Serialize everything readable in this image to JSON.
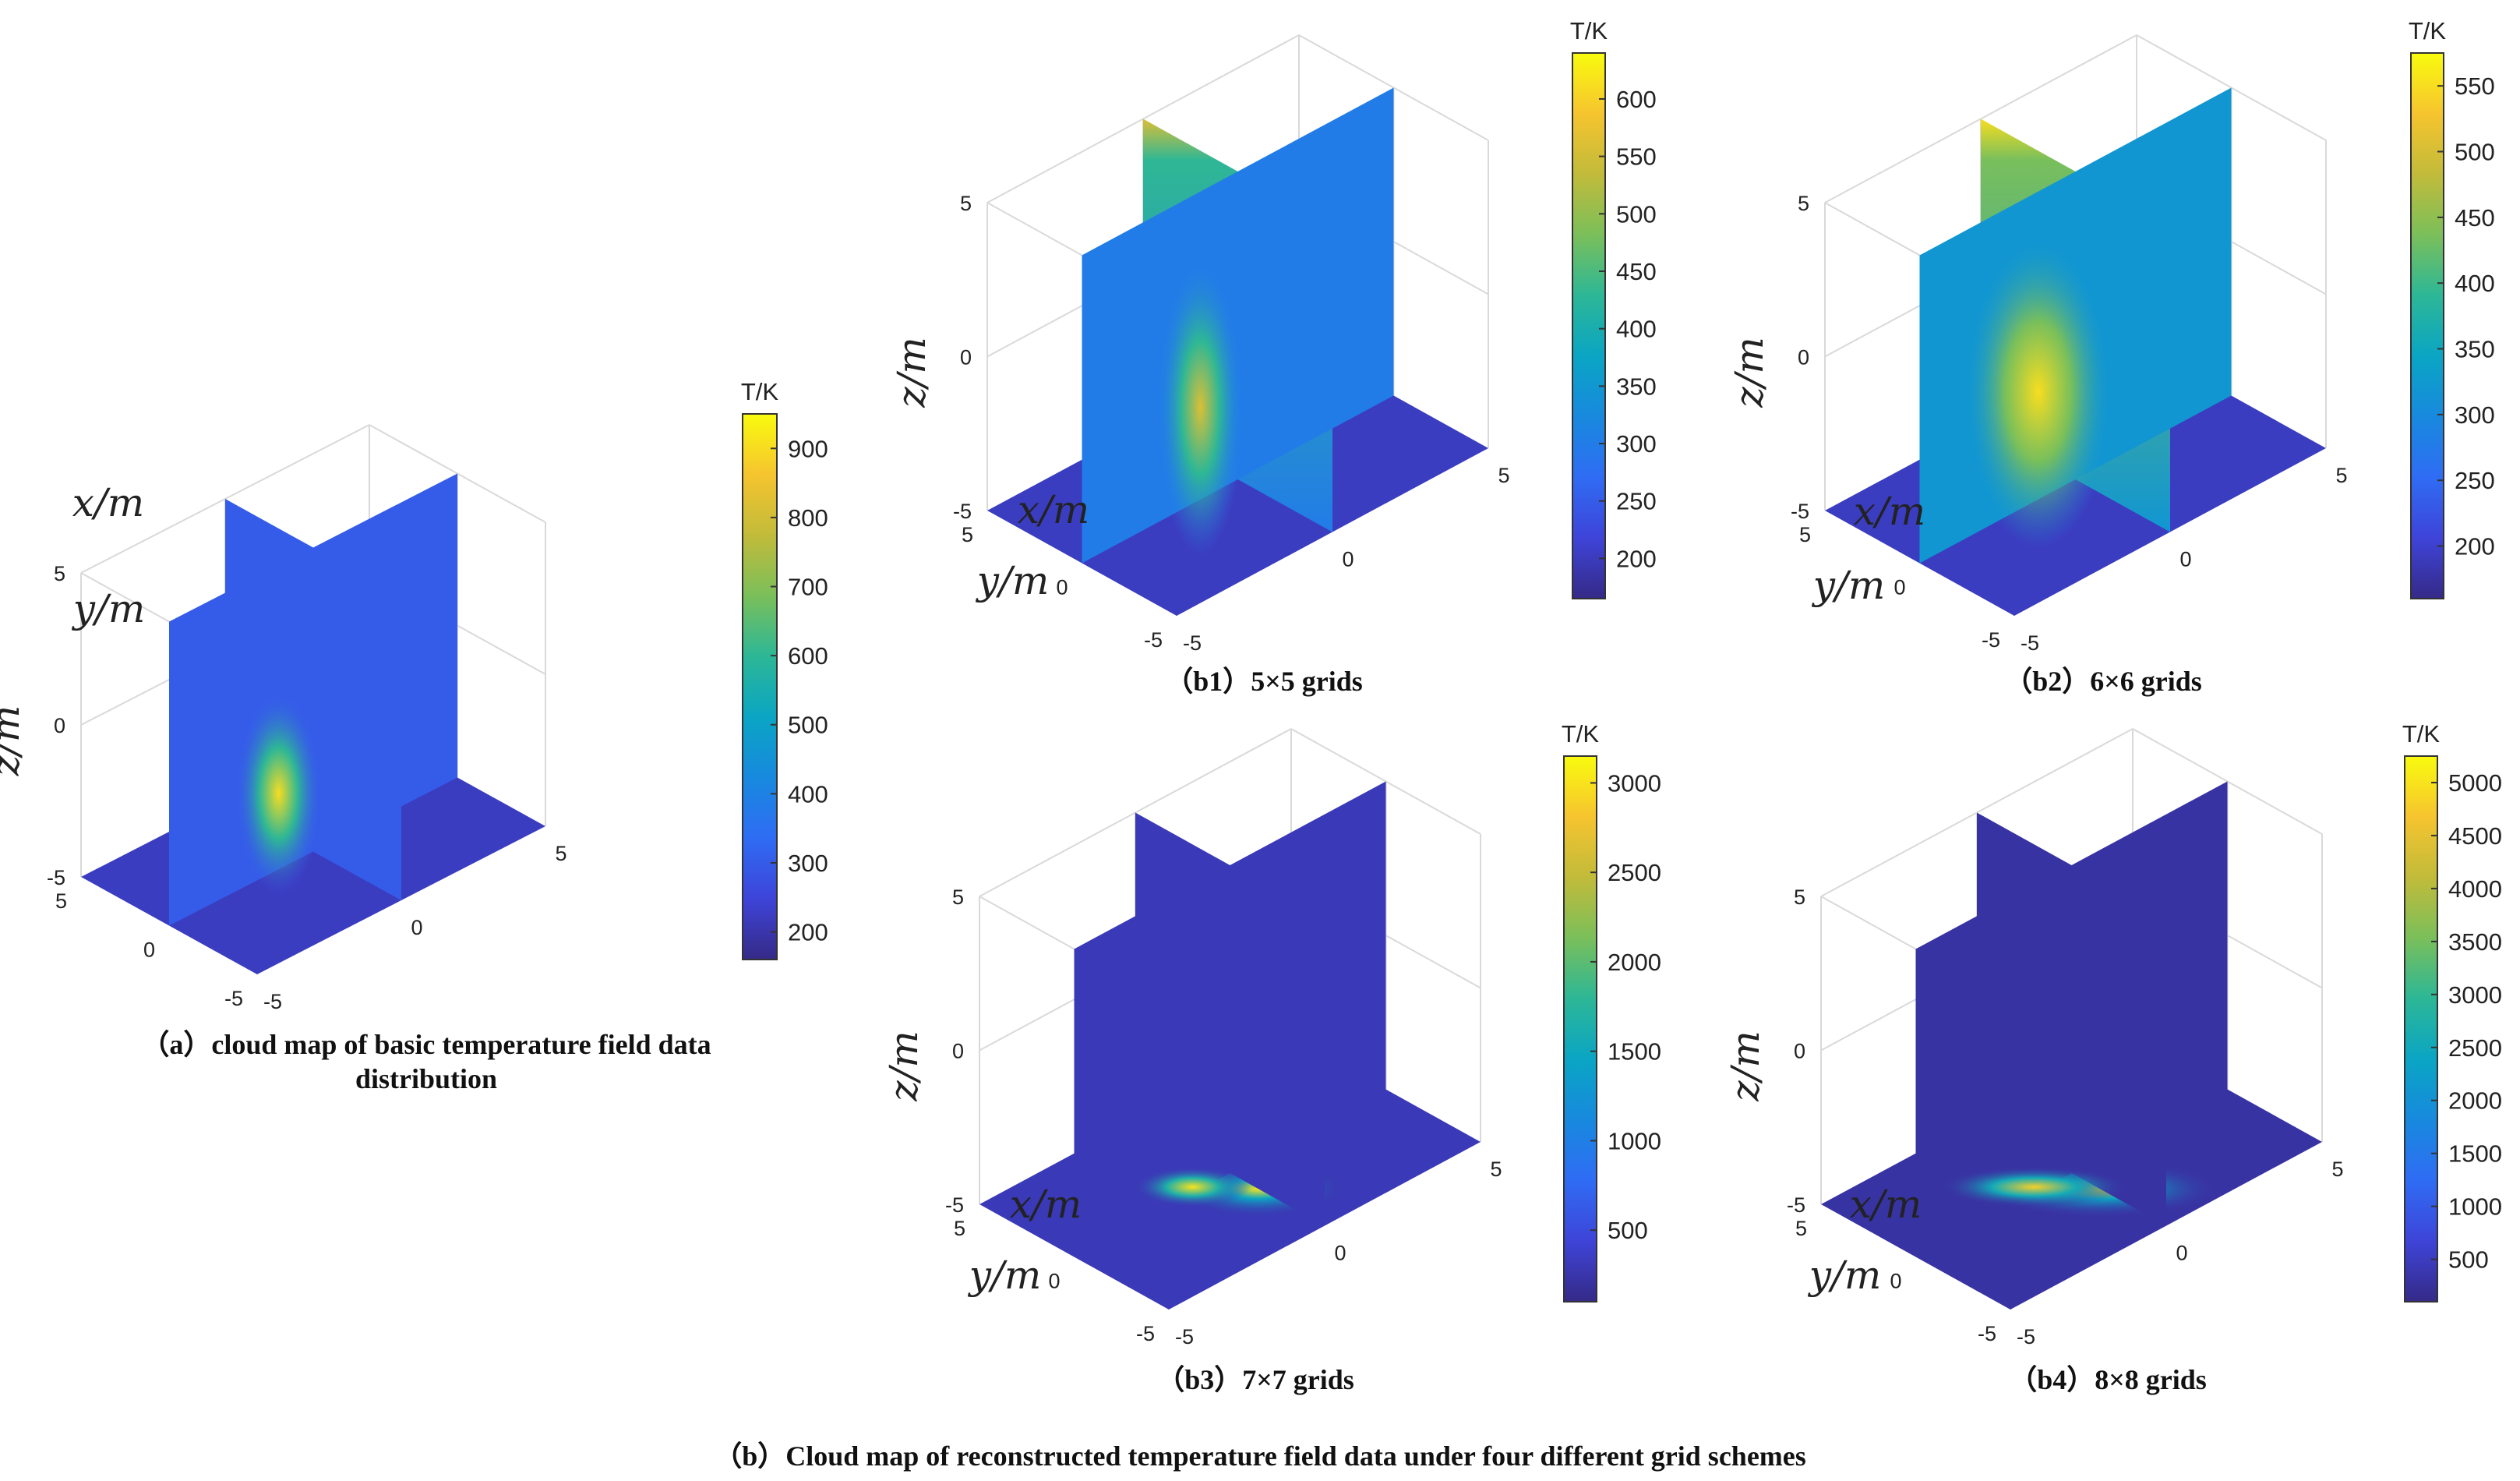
{
  "figure_caption": "（b）Cloud map of reconstructed temperature field data under four different grid schemes",
  "colors": {
    "parula": [
      "#352a87",
      "#3e44d8",
      "#2f6cf4",
      "#1889de",
      "#0aa5c4",
      "#2db796",
      "#7bbf5a",
      "#c2bb3a",
      "#f6c42f",
      "#f9fb0e"
    ]
  },
  "chart_data": [
    {
      "id": "a",
      "type": "heatmap",
      "title": "（a）cloud map of basic temperature field data distribution",
      "title_lines": [
        "（a）cloud map of basic temperature field data",
        "distribution"
      ],
      "xlabel": "x/m",
      "ylabel": "y/m",
      "zlabel": "z/m",
      "xlim": [
        -5,
        5
      ],
      "ylim": [
        -5,
        5
      ],
      "zlim": [
        -5,
        5
      ],
      "x_ticks": [
        "-5",
        "0",
        "5"
      ],
      "y_ticks": [
        "-5",
        "0",
        "5"
      ],
      "z_ticks": [
        "-5",
        "0",
        "5"
      ],
      "colorbar": {
        "unit": "T/K",
        "range": [
          160,
          950
        ],
        "ticks": [
          200,
          300,
          400,
          500,
          600,
          700,
          800,
          900
        ]
      },
      "hotspot": {
        "z": -2.5,
        "peak": 900,
        "ambient": 300
      }
    },
    {
      "id": "b1",
      "type": "heatmap",
      "title": "（b1）5×5 grids",
      "xlabel": "x/m",
      "ylabel": "y/m",
      "zlabel": "z/m",
      "xlim": [
        -5,
        5
      ],
      "ylim": [
        -5,
        5
      ],
      "zlim": [
        -5,
        5
      ],
      "x_ticks": [
        "-5",
        "0",
        "5"
      ],
      "y_ticks": [
        "-5",
        "0",
        "5"
      ],
      "z_ticks": [
        "-5",
        "0",
        "5"
      ],
      "colorbar": {
        "unit": "T/K",
        "range": [
          165,
          640
        ],
        "ticks": [
          200,
          250,
          300,
          350,
          400,
          450,
          500,
          550,
          600
        ]
      },
      "hotspot": {
        "z": -2.0,
        "peak": 560,
        "ambient": 300
      }
    },
    {
      "id": "b2",
      "type": "heatmap",
      "title": "（b2）6×6 grids",
      "xlabel": "x/m",
      "ylabel": "y/m",
      "zlabel": "z/m",
      "xlim": [
        -5,
        5
      ],
      "ylim": [
        -5,
        5
      ],
      "zlim": [
        -5,
        5
      ],
      "x_ticks": [
        "-5",
        "0",
        "5"
      ],
      "y_ticks": [
        "-5",
        "0",
        "5"
      ],
      "z_ticks": [
        "-5",
        "0",
        "5"
      ],
      "colorbar": {
        "unit": "T/K",
        "range": [
          160,
          575
        ],
        "ticks": [
          200,
          250,
          300,
          350,
          400,
          450,
          500,
          550
        ]
      },
      "hotspot": {
        "z": -1.5,
        "peak": 550,
        "ambient": 320
      }
    },
    {
      "id": "b3",
      "type": "heatmap",
      "title": "（b3）7×7 grids",
      "xlabel": "x/m",
      "ylabel": "y/m",
      "zlabel": "z/m",
      "xlim": [
        -5,
        5
      ],
      "ylim": [
        -5,
        5
      ],
      "zlim": [
        -5,
        5
      ],
      "x_ticks": [
        "-5",
        "0",
        "5"
      ],
      "y_ticks": [
        "-5",
        "0",
        "5"
      ],
      "z_ticks": [
        "-5",
        "0",
        "5"
      ],
      "colorbar": {
        "unit": "T/K",
        "range": [
          100,
          3150
        ],
        "ticks": [
          500,
          1000,
          1500,
          2000,
          2500,
          3000
        ]
      },
      "hotspot": {
        "z": -5,
        "peak": 3000,
        "ambient": 300
      }
    },
    {
      "id": "b4",
      "type": "heatmap",
      "title": "（b4）8×8 grids",
      "xlabel": "x/m",
      "ylabel": "y/m",
      "zlabel": "z/m",
      "xlim": [
        -5,
        5
      ],
      "ylim": [
        -5,
        5
      ],
      "zlim": [
        -5,
        5
      ],
      "x_ticks": [
        "-5",
        "0",
        "5"
      ],
      "y_ticks": [
        "-5",
        "0",
        "5"
      ],
      "z_ticks": [
        "-5",
        "0",
        "5"
      ],
      "colorbar": {
        "unit": "T/K",
        "range": [
          100,
          5250
        ],
        "ticks": [
          500,
          1000,
          1500,
          2000,
          2500,
          3000,
          3500,
          4000,
          4500,
          5000
        ]
      },
      "hotspot": {
        "z": -5,
        "peak": 4800,
        "ambient": 300
      }
    }
  ]
}
